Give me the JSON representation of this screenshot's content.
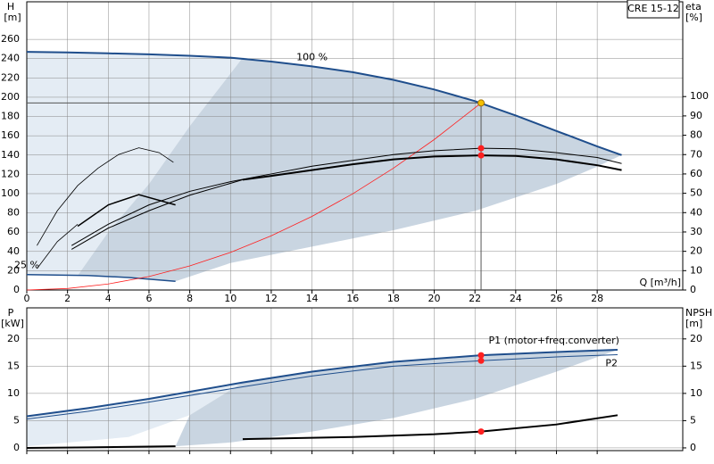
{
  "chart_data": [
    {
      "type": "line",
      "model": "CRE 15-12",
      "xlabel": "Q [m³/h]",
      "ylabel": "H",
      "yunit": "[m]",
      "y2label": "eta",
      "y2unit": "[%]",
      "xlim": [
        0,
        32.2
      ],
      "xticks": [
        0,
        2,
        4,
        6,
        8,
        10,
        12,
        14,
        16,
        18,
        20,
        22,
        24,
        26,
        28
      ],
      "ylim": [
        0,
        299
      ],
      "yticks": [
        0,
        20,
        40,
        60,
        80,
        100,
        120,
        140,
        160,
        180,
        200,
        220,
        240,
        260
      ],
      "y2lim": [
        0,
        149
      ],
      "y2ticks": [
        0,
        10,
        20,
        30,
        40,
        50,
        60,
        70,
        80,
        90,
        100
      ],
      "grid": true,
      "regions": [
        {
          "color": "#e4ecf4",
          "x": [
            0,
            2,
            4,
            6,
            8,
            10.6,
            8,
            6,
            4,
            2.5,
            0
          ],
          "y": [
            247,
            246.5,
            245.5,
            244.5,
            243,
            241,
            170,
            110,
            60,
            15,
            16
          ]
        },
        {
          "color": "#c9d5e1",
          "x": [
            10.6,
            12,
            14,
            16,
            18,
            20,
            22,
            24,
            26,
            28,
            29.2,
            28,
            26,
            22,
            18,
            14,
            10,
            7.3,
            5,
            2.5,
            4,
            6,
            8
          ],
          "y": [
            241,
            237,
            232,
            226,
            218,
            208,
            196,
            181,
            165,
            149,
            140,
            128,
            110,
            82,
            62,
            45,
            28,
            9,
            13,
            15,
            60,
            110,
            170
          ]
        }
      ],
      "series": [
        {
          "name": "100 %",
          "color": "#1f4e8c",
          "line_width": 2,
          "x": [
            0,
            2,
            4,
            6,
            8,
            10,
            12,
            14,
            16,
            18,
            20,
            22,
            24,
            26,
            28,
            29.2
          ],
          "values": [
            247,
            246.5,
            245.5,
            244.5,
            243,
            241,
            237,
            232,
            226,
            218,
            208,
            196,
            181,
            165,
            149,
            140
          ]
        },
        {
          "name": "25 %",
          "color": "#1f4e8c",
          "line_width": 1.5,
          "x": [
            0,
            3,
            5,
            7.3
          ],
          "values": [
            16,
            15,
            13,
            9
          ]
        },
        {
          "color": "#ff2020",
          "line_width": 0.8,
          "x": [
            0,
            2,
            4,
            6,
            8,
            10,
            12,
            14,
            16,
            18,
            20,
            22.3
          ],
          "values": [
            0,
            1.56,
            6.24,
            14,
            25,
            39,
            56.2,
            76.4,
            99.8,
            126.4,
            156.1,
            194
          ]
        },
        {
          "axis": "y2",
          "color": "#000",
          "line_width": 1,
          "x": [
            2.2,
            4,
            6,
            8,
            10,
            12,
            14,
            16,
            18,
            20,
            22.3,
            24,
            26,
            28,
            29.2
          ],
          "values": [
            23,
            34,
            44,
            51,
            56,
            60,
            64,
            67,
            70,
            72,
            73.3,
            73,
            71,
            68.5,
            65.4
          ]
        },
        {
          "axis": "y2",
          "color": "#000",
          "line_width": 1,
          "x": [
            2.2,
            4,
            6,
            8,
            10.6
          ],
          "values": [
            21,
            32,
            41,
            49,
            57
          ]
        },
        {
          "axis": "y2",
          "color": "#000",
          "line_width": 2,
          "x": [
            10.6,
            12,
            14,
            16,
            18,
            20,
            22.3,
            24,
            26,
            28,
            29.2
          ],
          "values": [
            57,
            59,
            62,
            65,
            67.5,
            69,
            69.6,
            69.3,
            67.5,
            64.5,
            62
          ]
        },
        {
          "axis": "y2",
          "color": "#000",
          "line_width": 0.8,
          "x": [
            0.5,
            1.5,
            2.5,
            3.5,
            4.5,
            5.5,
            6.5,
            7.2
          ],
          "values": [
            23,
            41,
            54,
            63,
            70,
            73.5,
            71,
            66
          ]
        },
        {
          "axis": "y2",
          "color": "#000",
          "line_width": 1.5,
          "x": [
            2.5,
            4,
            5.5,
            7.3
          ],
          "values": [
            33,
            44,
            49.3,
            44
          ]
        },
        {
          "axis": "y2",
          "color": "#000",
          "line_width": 0.8,
          "x": [
            0.5,
            1.5,
            2.5
          ],
          "values": [
            11,
            25,
            34
          ]
        }
      ],
      "points": [
        {
          "color": "#ff2020",
          "axis": "y2",
          "x": 22.3,
          "y": 73.3
        },
        {
          "color": "#ff2020",
          "axis": "y2",
          "x": 22.3,
          "y": 69.6
        },
        {
          "color": "#f5c000",
          "x": 22.3,
          "y": 194
        }
      ]
    },
    {
      "type": "line",
      "ylabel": "P",
      "yunit": "[kW]",
      "y2label": "NPSH",
      "y2unit": "[m]",
      "xlim": [
        0,
        32.2
      ],
      "xticks": [
        0,
        2,
        4,
        6,
        8,
        10,
        12,
        14,
        16,
        18,
        20,
        22,
        24,
        26,
        28
      ],
      "ylim": [
        -0.5,
        25.7
      ],
      "yticks": [
        0,
        5,
        10,
        15,
        20
      ],
      "y2lim": [
        -0.5,
        25.7
      ],
      "y2ticks": [
        0,
        5,
        10,
        15,
        20
      ],
      "grid": true,
      "regions": [
        {
          "color": "#e4ecf4",
          "x": [
            0,
            3,
            6,
            10.6,
            8,
            5,
            0
          ],
          "y": [
            5.8,
            7.3,
            9,
            12,
            6,
            2,
            0.3
          ]
        },
        {
          "color": "#c9d5e1",
          "x": [
            10.6,
            14,
            18,
            22.3,
            26,
            29,
            26,
            22,
            18,
            14,
            10,
            7.3,
            8
          ],
          "y": [
            12,
            14,
            15.8,
            17,
            17.6,
            18,
            14,
            9,
            5.5,
            3,
            1,
            0.3,
            6
          ]
        }
      ],
      "series": [
        {
          "name": "P1 (motor+freq.converter)",
          "color": "#1f4e8c",
          "line_width": 2,
          "x": [
            0,
            3,
            6,
            10.6,
            14,
            18,
            22.3,
            26,
            29
          ],
          "values": [
            5.8,
            7.3,
            9,
            12,
            14,
            15.8,
            17,
            17.6,
            18
          ]
        },
        {
          "name": "P2",
          "color": "#1f4e8c",
          "line_width": 1,
          "x": [
            0,
            3,
            6,
            10.6,
            14,
            18,
            22.3,
            26,
            29
          ],
          "values": [
            5.3,
            6.7,
            8.4,
            11.2,
            13.2,
            15,
            16,
            16.7,
            17.1
          ]
        },
        {
          "axis": "y2",
          "color": "#000",
          "line_width": 2,
          "x": [
            0,
            3,
            7.3
          ],
          "values": [
            0,
            0.1,
            0.3
          ]
        },
        {
          "axis": "y2",
          "color": "#000",
          "line_width": 2,
          "x": [
            10.6,
            16,
            20,
            22.3,
            26,
            29
          ],
          "values": [
            1.6,
            2,
            2.5,
            3,
            4.3,
            6
          ]
        }
      ],
      "points": [
        {
          "color": "#ff2020",
          "x": 22.3,
          "y": 17
        },
        {
          "color": "#ff2020",
          "x": 22.3,
          "y": 16
        },
        {
          "color": "#ff2020",
          "axis": "y2",
          "x": 22.3,
          "y": 3
        }
      ]
    }
  ]
}
